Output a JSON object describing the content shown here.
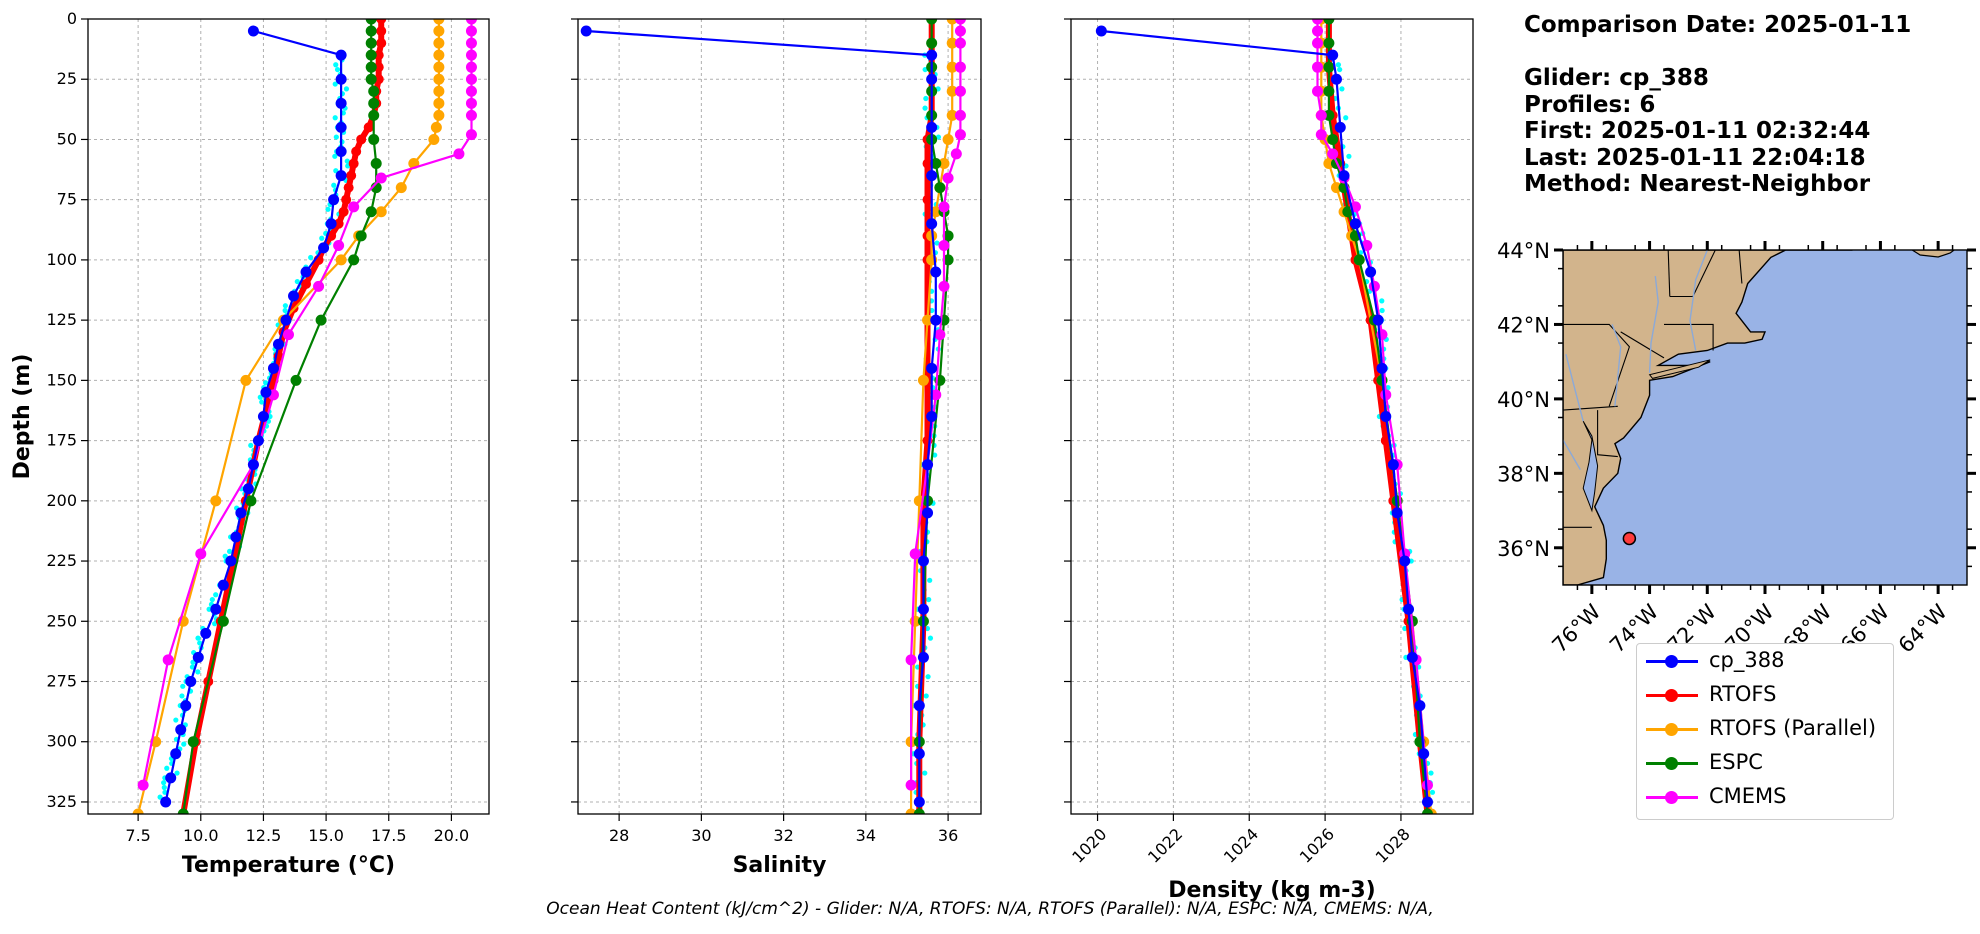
{
  "info": {
    "comparison": "Comparison Date: 2025-01-11",
    "glider": "Glider: cp_388",
    "profiles": "Profiles: 6",
    "first": "First: 2025-01-11 02:32:44",
    "last": "Last: 2025-01-11 22:04:18",
    "method": "Method: Nearest-Neighbor"
  },
  "footer": "Ocean Heat Content (kJ/cm^2) - Glider: N/A,  RTOFS: N/A,  RTOFS (Parallel): N/A,  ESPC: N/A,  CMEMS: N/A,",
  "colors": {
    "glider": "#0000ff",
    "rtofs": "#ff0000",
    "rtofs_parallel": "#ffa500",
    "espc": "#008000",
    "cmems": "#ff00ff",
    "glider_scatter": "#00ffff",
    "land": "#d2b48c",
    "ocean": "#99b3e6"
  },
  "legend": [
    {
      "label": "cp_388",
      "color": "#0000ff"
    },
    {
      "label": "RTOFS",
      "color": "#ff0000"
    },
    {
      "label": "RTOFS (Parallel)",
      "color": "#ffa500"
    },
    {
      "label": "ESPC",
      "color": "#008000"
    },
    {
      "label": "CMEMS",
      "color": "#ff00ff"
    }
  ],
  "chart_data": [
    {
      "type": "line",
      "xlabel": "Temperature (°C)",
      "ylabel": "Depth (m)",
      "xlim": [
        5.5,
        21.5
      ],
      "ylim": [
        330,
        0
      ],
      "x_ticks": [
        7.5,
        10.0,
        12.5,
        15.0,
        17.5,
        20.0
      ],
      "x_tick_labels": [
        "7.5",
        "10.0",
        "12.5",
        "15.0",
        "17.5",
        "20.0"
      ],
      "y_ticks": [
        0,
        25,
        50,
        75,
        100,
        125,
        150,
        175,
        200,
        225,
        250,
        275,
        300,
        325
      ],
      "y_tick_labels": [
        "0",
        "25",
        "50",
        "75",
        "100",
        "125",
        "150",
        "175",
        "200",
        "225",
        "250",
        "275",
        "300",
        "325"
      ],
      "grid": true,
      "series": [
        {
          "name": "cp_388",
          "color": "#0000ff",
          "markers": true,
          "depth": [
            5,
            15,
            25,
            35,
            45,
            55,
            65,
            75,
            85,
            95,
            105,
            115,
            125,
            135,
            145,
            155,
            165,
            175,
            185,
            195,
            205,
            215,
            225,
            235,
            245,
            255,
            265,
            275,
            285,
            295,
            305,
            315,
            325
          ],
          "values": [
            12.1,
            15.6,
            15.6,
            15.6,
            15.6,
            15.6,
            15.6,
            15.3,
            15.2,
            14.9,
            14.2,
            13.7,
            13.4,
            13.1,
            12.9,
            12.6,
            12.5,
            12.3,
            12.1,
            11.9,
            11.6,
            11.4,
            11.2,
            10.9,
            10.6,
            10.2,
            9.9,
            9.6,
            9.4,
            9.2,
            9.0,
            8.8,
            8.6
          ]
        },
        {
          "name": "RTOFS",
          "color": "#ff0000",
          "markers": true,
          "depth": [
            0,
            5,
            10,
            15,
            20,
            25,
            30,
            35,
            40,
            45,
            50,
            55,
            60,
            65,
            70,
            75,
            80,
            85,
            90,
            95,
            100,
            110,
            120,
            130,
            140,
            150,
            175,
            200,
            225,
            250,
            275,
            300,
            330
          ],
          "values": [
            17.2,
            17.2,
            17.2,
            17.1,
            17.1,
            17.1,
            17.0,
            17.0,
            16.9,
            16.7,
            16.4,
            16.2,
            16.1,
            16.0,
            15.9,
            15.8,
            15.7,
            15.5,
            15.2,
            14.9,
            14.7,
            14.2,
            13.7,
            13.3,
            13.1,
            12.9,
            12.3,
            11.8,
            11.3,
            10.8,
            10.3,
            9.8,
            9.3
          ]
        },
        {
          "name": "RTOFS (Parallel)",
          "color": "#ffa500",
          "markers": true,
          "depth": [
            0,
            5,
            10,
            15,
            20,
            25,
            30,
            35,
            40,
            45,
            50,
            60,
            70,
            80,
            90,
            100,
            125,
            150,
            200,
            250,
            300,
            330
          ],
          "values": [
            19.5,
            19.5,
            19.5,
            19.5,
            19.5,
            19.5,
            19.5,
            19.5,
            19.5,
            19.4,
            19.3,
            18.5,
            18.0,
            17.2,
            16.3,
            15.6,
            13.3,
            11.8,
            10.6,
            9.3,
            8.2,
            7.5
          ]
        },
        {
          "name": "ESPC",
          "color": "#008000",
          "markers": true,
          "depth": [
            0,
            5,
            10,
            15,
            20,
            25,
            30,
            35,
            40,
            50,
            60,
            70,
            80,
            90,
            100,
            125,
            150,
            200,
            250,
            300,
            330
          ],
          "values": [
            16.8,
            16.8,
            16.8,
            16.8,
            16.8,
            16.8,
            16.9,
            16.9,
            16.9,
            16.9,
            17.0,
            17.0,
            16.8,
            16.4,
            16.1,
            14.8,
            13.8,
            12.0,
            10.9,
            9.7,
            9.3
          ]
        },
        {
          "name": "CMEMS",
          "color": "#ff00ff",
          "markers": true,
          "depth": [
            0,
            5,
            10,
            15,
            20,
            25,
            30,
            35,
            40,
            48,
            56,
            66,
            78,
            94,
            111,
            131,
            156,
            185,
            222,
            266,
            318
          ],
          "values": [
            20.8,
            20.8,
            20.8,
            20.8,
            20.8,
            20.8,
            20.8,
            20.8,
            20.8,
            20.8,
            20.3,
            17.2,
            16.1,
            15.5,
            14.7,
            13.5,
            12.9,
            12.1,
            10.0,
            8.7,
            7.7
          ]
        }
      ]
    },
    {
      "type": "line",
      "xlabel": "Salinity",
      "ylim": [
        330,
        0
      ],
      "xlim": [
        27.0,
        36.8
      ],
      "x_ticks": [
        28,
        30,
        32,
        34,
        36
      ],
      "x_tick_labels": [
        "28",
        "30",
        "32",
        "34",
        "36"
      ],
      "grid": true,
      "series": [
        {
          "name": "cp_388",
          "color": "#0000ff",
          "markers": true,
          "depth": [
            5,
            15,
            25,
            45,
            65,
            85,
            105,
            125,
            145,
            165,
            185,
            205,
            225,
            245,
            265,
            285,
            305,
            325
          ],
          "values": [
            27.2,
            35.6,
            35.6,
            35.6,
            35.6,
            35.6,
            35.7,
            35.7,
            35.6,
            35.6,
            35.5,
            35.5,
            35.4,
            35.4,
            35.4,
            35.3,
            35.3,
            35.3
          ]
        },
        {
          "name": "RTOFS",
          "color": "#ff0000",
          "markers": true,
          "depth": [
            0,
            10,
            20,
            30,
            40,
            50,
            60,
            75,
            90,
            100,
            125,
            150,
            175,
            200,
            250,
            300,
            330
          ],
          "values": [
            35.6,
            35.6,
            35.6,
            35.6,
            35.6,
            35.5,
            35.5,
            35.5,
            35.5,
            35.5,
            35.5,
            35.5,
            35.5,
            35.4,
            35.4,
            35.3,
            35.3
          ]
        },
        {
          "name": "RTOFS (Parallel)",
          "color": "#ffa500",
          "markers": true,
          "depth": [
            0,
            10,
            20,
            30,
            40,
            50,
            60,
            70,
            80,
            90,
            100,
            125,
            150,
            200,
            250,
            300,
            330
          ],
          "values": [
            36.1,
            36.1,
            36.1,
            36.1,
            36.1,
            36.0,
            35.9,
            35.8,
            35.7,
            35.6,
            35.6,
            35.5,
            35.4,
            35.3,
            35.2,
            35.1,
            35.1
          ]
        },
        {
          "name": "ESPC",
          "color": "#008000",
          "markers": true,
          "depth": [
            0,
            10,
            20,
            30,
            40,
            50,
            60,
            70,
            80,
            90,
            100,
            125,
            150,
            200,
            250,
            300,
            330
          ],
          "values": [
            35.6,
            35.6,
            35.6,
            35.6,
            35.6,
            35.6,
            35.7,
            35.8,
            35.9,
            36.0,
            36.0,
            35.9,
            35.8,
            35.5,
            35.4,
            35.3,
            35.3
          ]
        },
        {
          "name": "CMEMS",
          "color": "#ff00ff",
          "markers": true,
          "depth": [
            0,
            5,
            10,
            20,
            30,
            40,
            48,
            56,
            66,
            78,
            94,
            111,
            131,
            156,
            185,
            222,
            266,
            318
          ],
          "values": [
            36.3,
            36.3,
            36.3,
            36.3,
            36.3,
            36.3,
            36.3,
            36.2,
            36.0,
            35.9,
            35.9,
            35.9,
            35.8,
            35.7,
            35.5,
            35.2,
            35.1,
            35.1
          ]
        }
      ]
    },
    {
      "type": "line",
      "xlabel": "Density (kg m-3)",
      "ylim": [
        330,
        0
      ],
      "xlim": [
        1019.3,
        1029.9
      ],
      "x_ticks": [
        1020,
        1022,
        1024,
        1026,
        1028
      ],
      "x_tick_labels": [
        "1020",
        "1022",
        "1024",
        "1026",
        "1028"
      ],
      "grid": true,
      "series": [
        {
          "name": "cp_388",
          "color": "#0000ff",
          "markers": true,
          "depth": [
            5,
            15,
            25,
            45,
            65,
            85,
            105,
            125,
            145,
            165,
            185,
            205,
            225,
            245,
            265,
            285,
            305,
            325
          ],
          "values": [
            1020.1,
            1026.2,
            1026.3,
            1026.4,
            1026.5,
            1026.8,
            1027.2,
            1027.4,
            1027.5,
            1027.6,
            1027.8,
            1027.9,
            1028.1,
            1028.2,
            1028.3,
            1028.5,
            1028.6,
            1028.7
          ]
        },
        {
          "name": "RTOFS",
          "color": "#ff0000",
          "markers": true,
          "depth": [
            0,
            20,
            40,
            60,
            80,
            100,
            125,
            150,
            175,
            200,
            250,
            300,
            330
          ],
          "values": [
            1026.1,
            1026.1,
            1026.2,
            1026.4,
            1026.6,
            1026.8,
            1027.2,
            1027.4,
            1027.6,
            1027.8,
            1028.2,
            1028.5,
            1028.7
          ]
        },
        {
          "name": "RTOFS (Parallel)",
          "color": "#ffa500",
          "markers": true,
          "depth": [
            0,
            10,
            20,
            30,
            40,
            50,
            60,
            70,
            80,
            90,
            100,
            150,
            200,
            250,
            300,
            330
          ],
          "values": [
            1025.9,
            1025.9,
            1025.9,
            1025.9,
            1025.9,
            1026.0,
            1026.1,
            1026.3,
            1026.5,
            1026.7,
            1026.9,
            1027.5,
            1027.9,
            1028.3,
            1028.6,
            1028.8
          ]
        },
        {
          "name": "ESPC",
          "color": "#008000",
          "markers": true,
          "depth": [
            0,
            10,
            20,
            30,
            40,
            50,
            60,
            70,
            80,
            90,
            100,
            125,
            150,
            200,
            250,
            300,
            330
          ],
          "values": [
            1026.1,
            1026.1,
            1026.1,
            1026.1,
            1026.1,
            1026.2,
            1026.3,
            1026.5,
            1026.6,
            1026.8,
            1026.9,
            1027.3,
            1027.5,
            1027.9,
            1028.3,
            1028.5,
            1028.7
          ]
        },
        {
          "name": "CMEMS",
          "color": "#ff00ff",
          "markers": true,
          "depth": [
            0,
            5,
            10,
            20,
            30,
            40,
            48,
            56,
            66,
            78,
            94,
            111,
            131,
            156,
            185,
            222,
            266,
            318
          ],
          "values": [
            1025.8,
            1025.8,
            1025.8,
            1025.8,
            1025.8,
            1025.9,
            1025.9,
            1026.2,
            1026.5,
            1026.8,
            1027.1,
            1027.3,
            1027.5,
            1027.6,
            1027.9,
            1028.1,
            1028.4,
            1028.7
          ]
        }
      ]
    },
    {
      "type": "map",
      "lat_ticks": [
        "44°N",
        "42°N",
        "40°N",
        "38°N",
        "36°N"
      ],
      "lon_ticks": [
        "76°W",
        "74°W",
        "72°W",
        "70°W",
        "68°W",
        "66°W",
        "64°W"
      ],
      "lat_range": [
        35.0,
        44.0
      ],
      "lon_range": [
        -77.0,
        -63.0
      ],
      "glider_position": {
        "lat": 36.25,
        "lon": -74.7
      }
    }
  ]
}
